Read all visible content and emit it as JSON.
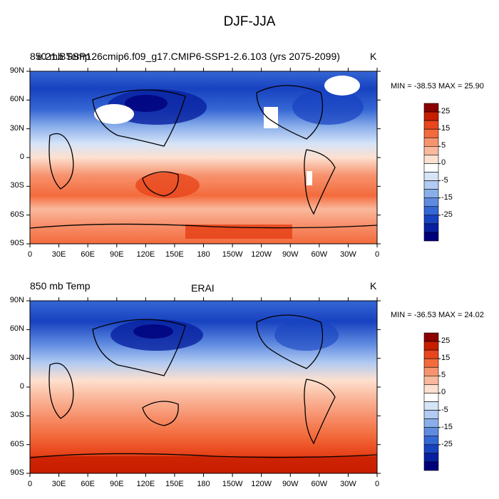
{
  "figure_title": "DJF-JJA",
  "panels": [
    {
      "left_label": "850 mb Temp",
      "center_label": "e.21.BSSP126cmip6.f09_g17.CMIP6-SSP1-2.6.103 (yrs 2075-2099)",
      "units": "K",
      "min": -38.53,
      "max": 25.9,
      "minmax_text": "MIN = -38.53 MAX =  25.90"
    },
    {
      "left_label": "850 mb Temp",
      "center_label": "ERAI",
      "units": "K",
      "min": -36.53,
      "max": 24.02,
      "minmax_text": "MIN = -36.53 MAX =  24.02"
    }
  ],
  "lat_ticks": [
    "90N",
    "60N",
    "30N",
    "0",
    "30S",
    "60S",
    "90S"
  ],
  "lon_ticks": [
    "0",
    "30E",
    "60E",
    "90E",
    "120E",
    "150E",
    "180",
    "150W",
    "120W",
    "90W",
    "60W",
    "30W",
    "0"
  ],
  "colorbar": {
    "labels": [
      "25",
      "15",
      "5",
      "0",
      "-5",
      "-15",
      "-25"
    ],
    "colors": [
      "#8b0000",
      "#c81e00",
      "#e8461c",
      "#f36b3c",
      "#f79470",
      "#fab89c",
      "#fde0cf",
      "#ffffff",
      "#d6e4f8",
      "#b2cbf2",
      "#8aaeea",
      "#5f8be0",
      "#3466d4",
      "#1842c0",
      "#0820a0",
      "#00007a"
    ]
  }
}
